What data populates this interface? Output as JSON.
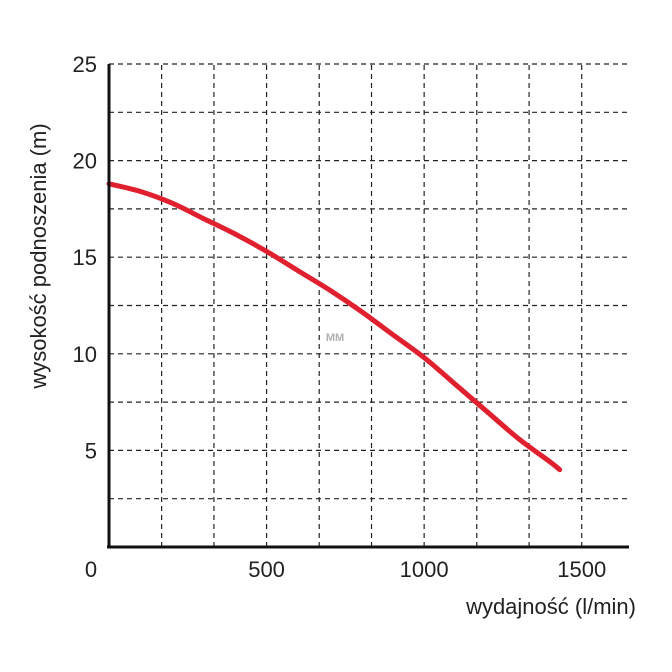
{
  "chart_data": {
    "type": "line",
    "title": "",
    "xlabel": "wydajność (l/min)",
    "ylabel": "wysokość podnoszenia (m)",
    "xlim": [
      0,
      1650
    ],
    "ylim": [
      0,
      25
    ],
    "xticks": [
      0,
      500,
      1000,
      1500
    ],
    "xtick_labels": [
      "0",
      "500",
      "1000",
      "1500"
    ],
    "yticks": [
      5,
      10,
      15,
      20,
      25
    ],
    "ytick_labels": [
      "5",
      "10",
      "15",
      "20",
      "25"
    ],
    "x_gridlines": [
      167,
      333,
      500,
      667,
      833,
      1000,
      1167,
      1333,
      1500
    ],
    "y_gridlines": [
      2.5,
      5,
      7.5,
      10,
      12.5,
      15,
      17.5,
      20,
      22.5
    ],
    "grid": "dashed",
    "legend": "none",
    "series": [
      {
        "color": "#e0202e",
        "x": [
          0,
          100,
          200,
          300,
          400,
          500,
          600,
          700,
          800,
          900,
          1000,
          1100,
          1200,
          1300,
          1400,
          1430
        ],
        "y": [
          18.8,
          18.4,
          17.8,
          17.0,
          16.2,
          15.3,
          14.3,
          13.3,
          12.2,
          11.0,
          9.8,
          8.4,
          7.0,
          5.6,
          4.4,
          4.0
        ]
      }
    ],
    "watermark": "MM"
  }
}
